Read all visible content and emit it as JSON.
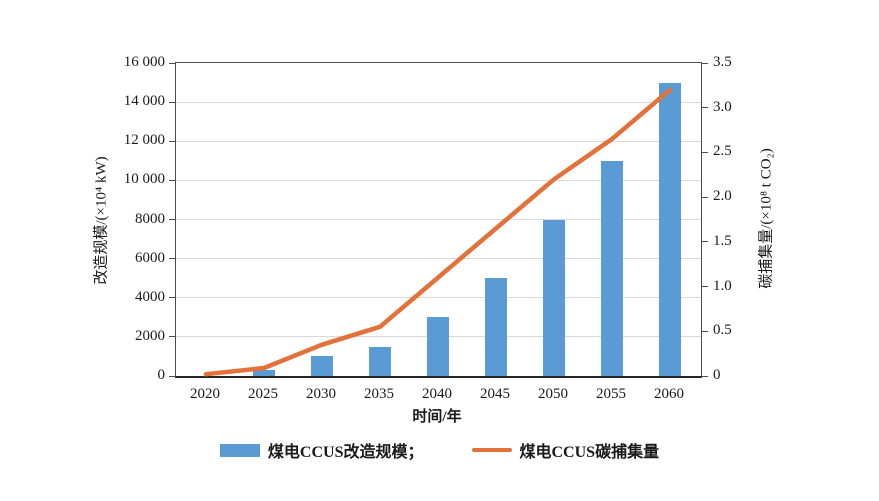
{
  "figure": {
    "background": "#ffffff"
  },
  "chart_data": {
    "type": "bar",
    "subtype": "combo-bar-line",
    "title": "",
    "categories": [
      "2020",
      "2025",
      "2030",
      "2035",
      "2040",
      "2045",
      "2050",
      "2055",
      "2060"
    ],
    "series": [
      {
        "name": "煤电CCUS改造规模",
        "type": "bar",
        "axis": "left",
        "color": "#5B9BD5",
        "values": [
          0,
          300,
          1000,
          1500,
          3000,
          5000,
          8000,
          11000,
          15000
        ]
      },
      {
        "name": "煤电CCUS碳捕集量",
        "type": "line",
        "axis": "right",
        "color": "#E2713A",
        "values": [
          0.02,
          0.09,
          0.35,
          0.55,
          1.1,
          1.65,
          2.2,
          2.65,
          3.2
        ]
      }
    ],
    "xlabel": "时间/年",
    "left_axis": {
      "label": "改造规模/(×10⁴ kW)",
      "min": 0,
      "max": 16000,
      "tick_values": [
        0,
        2000,
        4000,
        6000,
        8000,
        10000,
        12000,
        14000,
        16000
      ],
      "tick_labels": [
        "0",
        "2000",
        "4000",
        "6000",
        "8000",
        "10 000",
        "12 000",
        "14 000",
        "16 000"
      ]
    },
    "right_axis": {
      "label": "碳捕集量/(×10⁸ t CO₂)",
      "min": 0,
      "max": 3.5,
      "tick_values": [
        0,
        0.5,
        1.0,
        1.5,
        2.0,
        2.5,
        3.0,
        3.5
      ],
      "tick_labels": [
        "0",
        "0.5",
        "1.0",
        "1.5",
        "2.0",
        "2.5",
        "3.0",
        "3.5"
      ]
    },
    "grid": true,
    "legend_position": "bottom",
    "legend": [
      {
        "label": "煤电CCUS改造规模；",
        "swatch": "bar"
      },
      {
        "label": "煤电CCUS碳捕集量",
        "swatch": "line"
      }
    ]
  }
}
